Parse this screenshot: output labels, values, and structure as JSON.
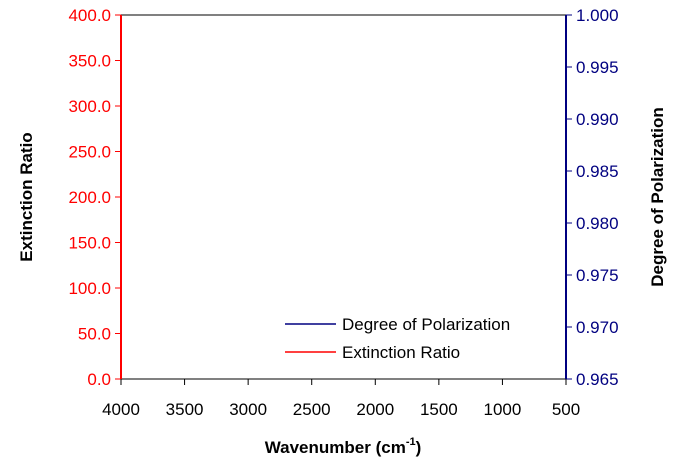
{
  "chart_data": {
    "type": "line",
    "x_axis": {
      "label_main": "Wavenumber (cm",
      "label_sup": "-1",
      "label_end": ")",
      "range": [
        4000,
        500
      ],
      "ticks": [
        "4000",
        "3500",
        "3000",
        "2500",
        "2000",
        "1500",
        "1000",
        "500"
      ],
      "reversed": true
    },
    "y_axis_left": {
      "label": "Extinction Ratio",
      "range": [
        0,
        400
      ],
      "ticks": [
        "0.0",
        "50.0",
        "100.0",
        "150.0",
        "200.0",
        "250.0",
        "300.0",
        "350.0",
        "400.0"
      ],
      "color": "#ff0000"
    },
    "y_axis_right": {
      "label": "Degree of Polarization",
      "range": [
        0.965,
        1.0
      ],
      "ticks": [
        "0.965",
        "0.970",
        "0.975",
        "0.980",
        "0.985",
        "0.990",
        "0.995",
        "1.000"
      ],
      "color": "#000080"
    },
    "series": [
      {
        "name": "Degree of Polarization",
        "color": "#000080",
        "axis": "right",
        "x": [],
        "values": []
      },
      {
        "name": "Extinction Ratio",
        "color": "#ff0000",
        "axis": "left",
        "x": [],
        "values": []
      }
    ],
    "legend_position": "bottom-right",
    "grid": false
  }
}
